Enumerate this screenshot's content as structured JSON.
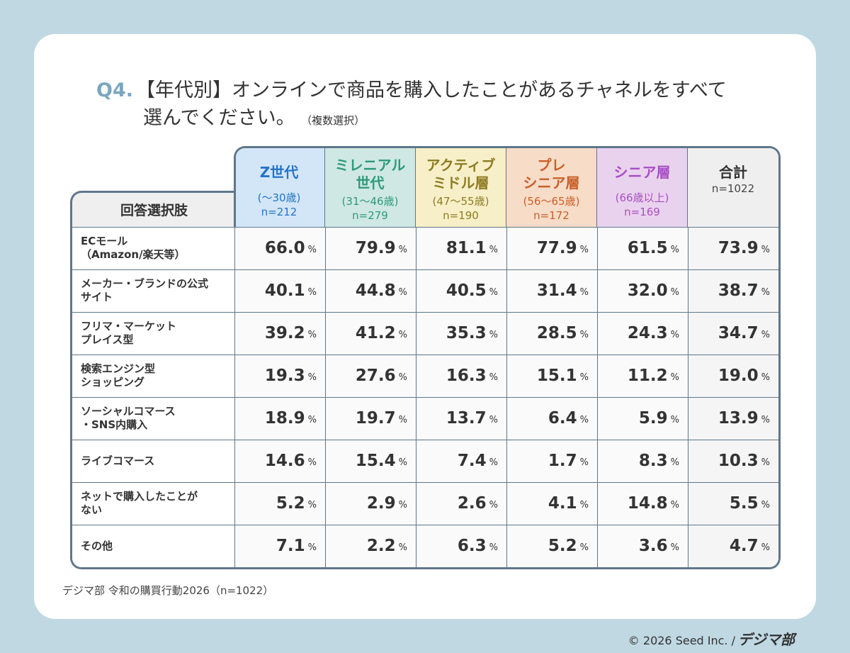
{
  "title": {
    "q": "Q4.",
    "line1": "【年代別】オンラインで商品を購入したことがあるチャネルをすべて",
    "line2": "選んでください。",
    "note": "（複数選択）"
  },
  "table": {
    "label_header": "回答選択肢",
    "columns": [
      {
        "name": "Z世代",
        "age": "(～30歳)",
        "n": "n=212",
        "bg": "#d3e6f7",
        "color": "#2574c9"
      },
      {
        "name": "ミレニアル世代",
        "age": "(31～46歳)",
        "n": "n=279",
        "bg": "#cfe8e4",
        "color": "#2e9a7a"
      },
      {
        "name": "アクティブミドル層",
        "age": "(47～55歳)",
        "n": "n=190",
        "bg": "#f7efc8",
        "color": "#8e7c22"
      },
      {
        "name": "プレシニア層",
        "age": "(56～65歳)",
        "n": "n=172",
        "bg": "#f7dcc8",
        "color": "#c9602a"
      },
      {
        "name": "シニア層",
        "age": "(66歳以上)",
        "n": "n=169",
        "bg": "#e9d2ee",
        "color": "#a94fc3"
      },
      {
        "name": "合計",
        "age": "",
        "n": "n=1022",
        "bg": "#efefef",
        "color": "#333333"
      }
    ],
    "unit": "%",
    "rows": [
      {
        "label": "ECモール\n（Amazon/楽天等）",
        "values": [
          "66.0",
          "79.9",
          "81.1",
          "77.9",
          "61.5",
          "73.9"
        ]
      },
      {
        "label": "メーカー・ブランドの公式\nサイト",
        "values": [
          "40.1",
          "44.8",
          "40.5",
          "31.4",
          "32.0",
          "38.7"
        ]
      },
      {
        "label": "フリマ・マーケット\nプレイス型",
        "values": [
          "39.2",
          "41.2",
          "35.3",
          "28.5",
          "24.3",
          "34.7"
        ]
      },
      {
        "label": "検索エンジン型\nショッピング",
        "values": [
          "19.3",
          "27.6",
          "16.3",
          "15.1",
          "11.2",
          "19.0"
        ]
      },
      {
        "label": "ソーシャルコマース\n・SNS内購入",
        "values": [
          "18.9",
          "19.7",
          "13.7",
          "6.4",
          "5.9",
          "13.9"
        ]
      },
      {
        "label": "ライブコマース",
        "values": [
          "14.6",
          "15.4",
          "7.4",
          "1.7",
          "8.3",
          "10.3"
        ]
      },
      {
        "label": "ネットで購入したことが\nない",
        "values": [
          "5.2",
          "2.9",
          "2.6",
          "4.1",
          "14.8",
          "5.5"
        ]
      },
      {
        "label": "その他",
        "values": [
          "7.1",
          "2.2",
          "6.3",
          "5.2",
          "3.6",
          "4.7"
        ]
      }
    ]
  },
  "source": "デジマ部 令和の購買行動2026（n=1022）",
  "copyright": "© 2026 Seed Inc. /",
  "logo": "デジマ部"
}
